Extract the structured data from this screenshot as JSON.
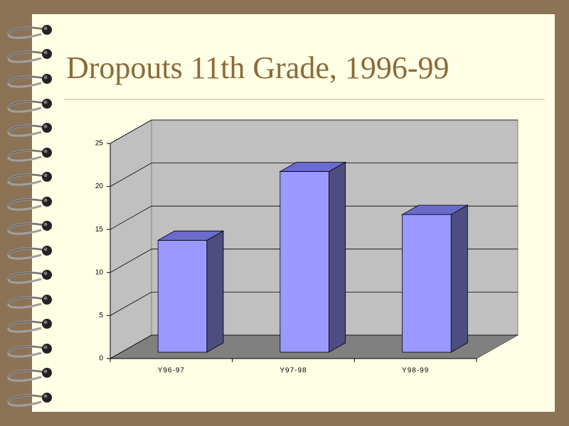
{
  "chart_data": {
    "type": "bar",
    "title": "Dropouts 11th Grade, 1996-99",
    "categories": [
      "Y96-97",
      "Y97-98",
      "Y98-99"
    ],
    "values": [
      13,
      21,
      16
    ],
    "color": "#9999ff",
    "ylim": [
      0,
      25
    ],
    "yticks": [
      0,
      5,
      10,
      15,
      20,
      25
    ],
    "grid": true
  }
}
